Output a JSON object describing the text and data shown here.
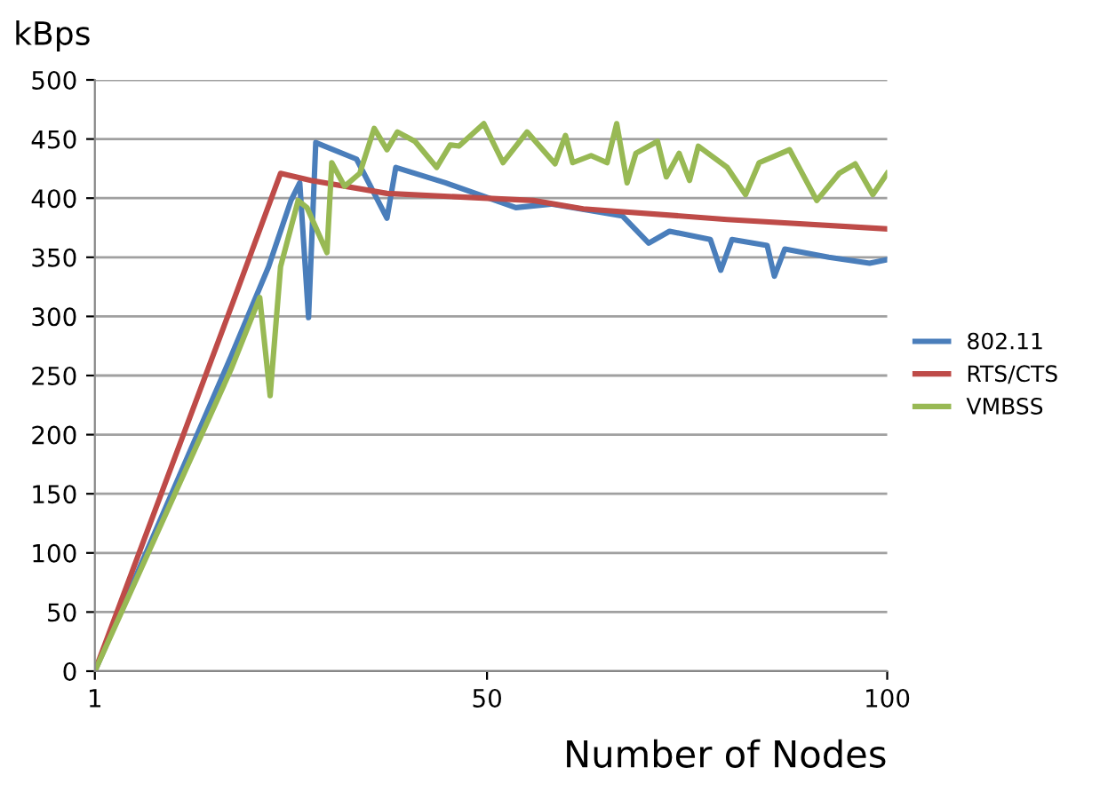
{
  "chart_data": {
    "type": "line",
    "ylabel": "kBps",
    "xlabel": "Number of Nodes",
    "xlim": [
      1,
      100
    ],
    "xticks": [
      1,
      50,
      100
    ],
    "ylim": [
      0,
      500
    ],
    "yticks": [
      0,
      50,
      100,
      150,
      200,
      250,
      300,
      350,
      400,
      450,
      500
    ],
    "grid": "y",
    "legend": "right",
    "marker": "none",
    "line_style": "solid",
    "series": [
      {
        "name": "802.11",
        "color": "#4a7ebb",
        "x": [
          1,
          18,
          22.7,
          25.5,
          26.6,
          27.7,
          28.6,
          33.7,
          37.5,
          38.6,
          44.8,
          53.6,
          58,
          66.9,
          70.2,
          72.8,
          77.9,
          79.2,
          80.6,
          85,
          85.9,
          87.2,
          92.7,
          97.8,
          100
        ],
        "values": [
          0,
          266,
          342,
          398,
          413,
          299,
          447,
          433,
          383,
          426,
          413,
          392,
          395,
          385,
          362,
          372,
          365,
          339,
          365,
          360,
          334,
          357,
          350,
          345,
          348
        ]
      },
      {
        "name": "RTS/CTS",
        "color": "#be4b48",
        "x": [
          1,
          18.2,
          24.2,
          28,
          37.5,
          55.8,
          62,
          80,
          100
        ],
        "values": [
          0,
          311,
          421,
          415,
          404,
          398,
          391,
          382,
          374
        ]
      },
      {
        "name": "VMBSS",
        "color": "#98b954",
        "x": [
          1,
          18,
          21.6,
          22.9,
          24.2,
          26.4,
          27.5,
          30,
          30.6,
          32.2,
          34.1,
          35.9,
          37.5,
          38.8,
          41,
          43.7,
          45.4,
          46.5,
          49.6,
          52,
          55,
          58.5,
          59.8,
          60.7,
          63,
          65,
          66.2,
          67.5,
          68.6,
          71.3,
          72.4,
          74,
          75.3,
          76.4,
          80,
          82.3,
          84,
          87.8,
          91.2,
          94,
          96,
          98.2,
          100
        ],
        "values": [
          0,
          255,
          316,
          233,
          342,
          398,
          392,
          354,
          430,
          410,
          421,
          459,
          441,
          456,
          448,
          426,
          445,
          444,
          463,
          430,
          456,
          429,
          453,
          430,
          436,
          430,
          463,
          413,
          438,
          448,
          418,
          438,
          415,
          444,
          426,
          403,
          430,
          441,
          398,
          421,
          429,
          403,
          421
        ]
      }
    ]
  }
}
